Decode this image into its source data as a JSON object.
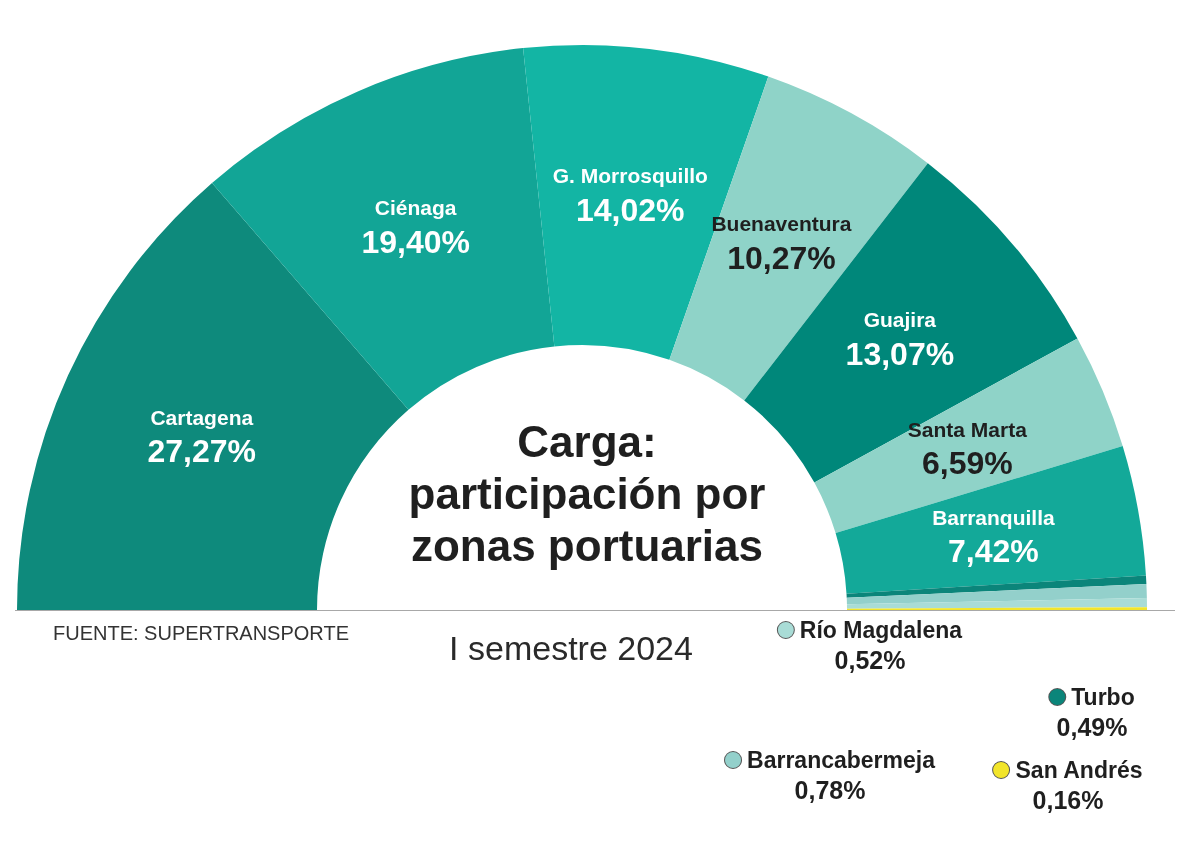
{
  "chart_data": {
    "type": "donut",
    "title": "Carga: participación por zonas portuarias",
    "subtitle": "I semestre 2024",
    "annotations": [
      "FUENTE: SUPERTRANSPORTE"
    ],
    "categories": [
      "Cartagena",
      "Ciénaga",
      "G. Morrosquillo",
      "Buenaventura",
      "Guajira",
      "Santa Marta",
      "Barranquilla",
      "Turbo",
      "Barrancabermeja",
      "Río Magdalena",
      "San Andrés"
    ],
    "values": [
      27.27,
      19.4,
      14.02,
      10.27,
      13.07,
      6.59,
      7.42,
      0.49,
      0.78,
      0.52,
      0.16
    ],
    "value_labels": [
      "27,27%",
      "19,40%",
      "14,02%",
      "10,27%",
      "13,07%",
      "6,59%",
      "7,42%",
      "0,49%",
      "0,78%",
      "0,52%",
      "0,16%"
    ],
    "colors": [
      "#0e8a7c",
      "#12a596",
      "#13b5a4",
      "#8fd3c8",
      "#00877a",
      "#8fd3c8",
      "#13a999",
      "#0b857a",
      "#93d0cb",
      "#a9dcd6",
      "#f2e52b"
    ],
    "legend": "bottom right"
  }
}
